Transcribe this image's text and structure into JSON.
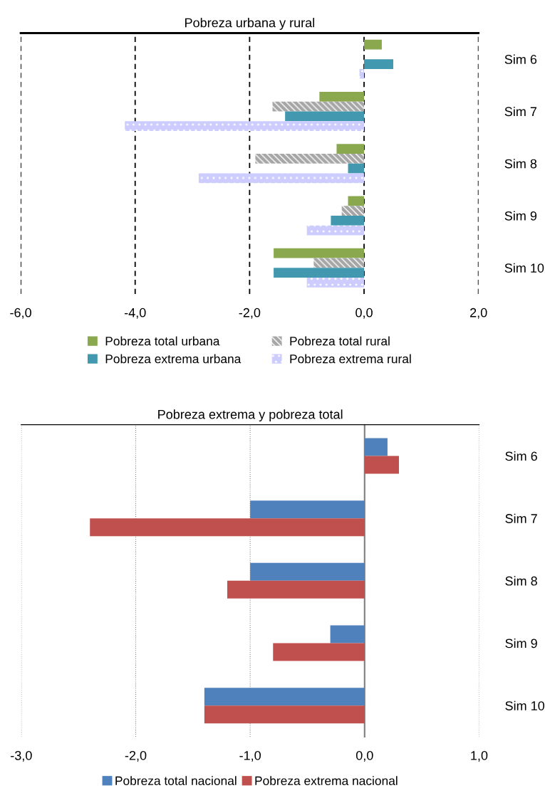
{
  "chart_data": [
    {
      "type": "bar",
      "orientation": "horizontal",
      "title": "Pobreza urbana y rural",
      "categories": [
        "Sim 6",
        "Sim 7",
        "Sim 8",
        "Sim 9",
        "Sim 10"
      ],
      "series": [
        {
          "name": "Pobreza total urbana",
          "color": "#8aa84e",
          "values": [
            0.31,
            -0.78,
            -0.48,
            -0.28,
            -1.58
          ]
        },
        {
          "name": "Pobreza total rural",
          "color": "#a6a6a6",
          "values": [
            0,
            -1.6,
            -1.9,
            -0.39,
            -0.88
          ]
        },
        {
          "name": "Pobreza extrema urbana",
          "color": "#4198af",
          "values": [
            0.51,
            -1.38,
            -0.28,
            -0.58,
            -1.58
          ]
        },
        {
          "name": "Pobreza extrema rural",
          "color": "#ccccff",
          "values": [
            -0.08,
            -4.18,
            -2.89,
            -1.0,
            -1.0
          ]
        }
      ],
      "xlim": [
        -6,
        2
      ],
      "xticks": [
        {
          "value": -6,
          "label": "-6,0"
        },
        {
          "value": -4,
          "label": "-4,0"
        },
        {
          "value": -2,
          "label": "-2,0"
        },
        {
          "value": 0,
          "label": "0,0"
        },
        {
          "value": 2,
          "label": "2,0"
        }
      ],
      "grid": "x",
      "legend": "bottom"
    },
    {
      "type": "bar",
      "orientation": "horizontal",
      "title": "Pobreza extrema y pobreza total",
      "categories": [
        "Sim 6",
        "Sim 7",
        "Sim 8",
        "Sim 9",
        "Sim 10"
      ],
      "series": [
        {
          "name": "Pobreza total nacional",
          "color": "#4f81bd",
          "values": [
            0.2,
            -1.0,
            -1.0,
            -0.3,
            -1.4
          ]
        },
        {
          "name": "Pobreza extrema nacional",
          "color": "#c0504d",
          "values": [
            0.3,
            -2.4,
            -1.2,
            -0.8,
            -1.4
          ]
        }
      ],
      "xlim": [
        -3,
        1
      ],
      "xticks": [
        {
          "value": -3,
          "label": "-3,0"
        },
        {
          "value": -2,
          "label": "-2,0"
        },
        {
          "value": -1,
          "label": "-1,0"
        },
        {
          "value": 0,
          "label": "0,0"
        },
        {
          "value": 1,
          "label": "1,0"
        }
      ],
      "grid": "x",
      "legend": "bottom"
    }
  ]
}
